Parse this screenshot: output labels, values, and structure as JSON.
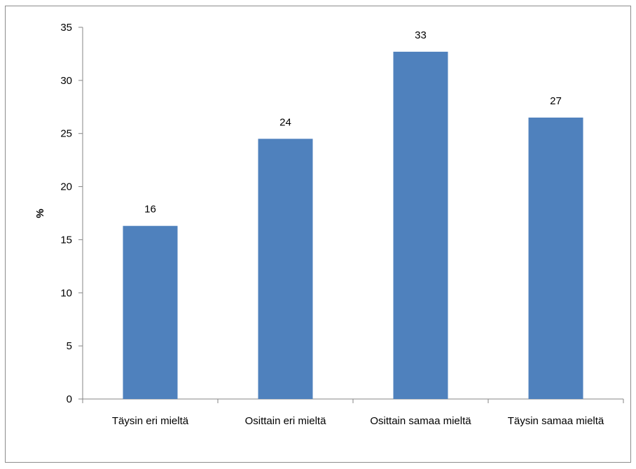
{
  "chart_data": {
    "type": "bar",
    "title": "",
    "xlabel": "",
    "ylabel": "%",
    "ylim": [
      0,
      35
    ],
    "yticks": [
      0,
      5,
      10,
      15,
      20,
      25,
      30,
      35
    ],
    "categories": [
      "Täysin eri mieltä",
      "Osittain eri mieltä",
      "Osittain samaa mieltä",
      "Täysin samaa mieltä"
    ],
    "values": [
      16.3,
      24.5,
      32.7,
      26.5
    ],
    "data_labels": [
      "16",
      "24",
      "33",
      "27"
    ],
    "bar_color": "#4f81bd",
    "grid": false,
    "legend": "none"
  }
}
